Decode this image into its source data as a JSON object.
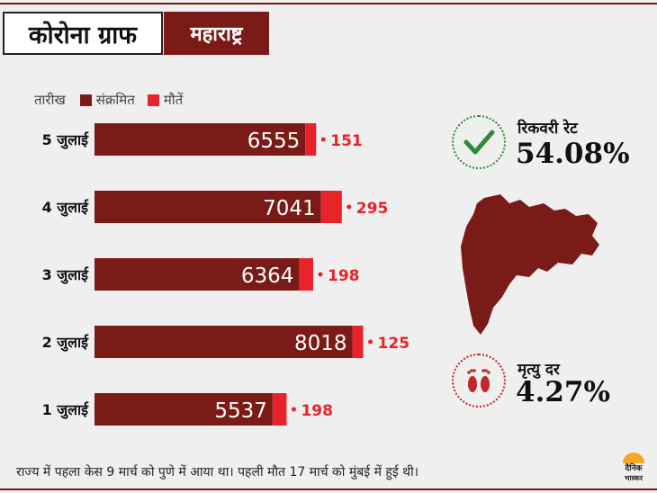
{
  "header": {
    "title": "कोरोना ग्राफ",
    "state": "महाराष्ट्र"
  },
  "legend": {
    "date_label": "तारीख",
    "infected_label": "संक्रमित",
    "deaths_label": "मौतें"
  },
  "colors": {
    "brand": "#7a1b17",
    "infected": "#7a1b17",
    "deaths": "#e8232a",
    "recovery": "#2d8a3a",
    "death_icon": "#c0262a"
  },
  "chart_data": {
    "type": "bar",
    "orientation": "horizontal",
    "stacked": true,
    "categories": [
      "5 जुलाई",
      "4 जुलाई",
      "3 जुलाई",
      "2 जुलाई",
      "1 जुलाई"
    ],
    "series": [
      {
        "name": "संक्रमित",
        "values": [
          6555,
          7041,
          6364,
          8018,
          5537
        ]
      },
      {
        "name": "मौतें",
        "values": [
          151,
          295,
          198,
          125,
          198
        ]
      }
    ],
    "xlim": [
      0,
      8143
    ],
    "grid": false,
    "legend": "top-left"
  },
  "stats": {
    "recovery_label": "रिकवरी रेट",
    "recovery_value": "54.08%",
    "recovery_icon": "check-icon",
    "death_label": "मृत्यु दर",
    "death_value": "4.27%",
    "death_icon": "footprints-icon"
  },
  "map": {
    "icon": "maharashtra-map"
  },
  "footnote": "राज्य में पहला केस 9 मार्च को पुणे में आया था। पहली मौत 17 मार्च को मुंबई में हुई थी।",
  "logo": {
    "line1": "दैनिक",
    "line2": "भास्कर"
  }
}
